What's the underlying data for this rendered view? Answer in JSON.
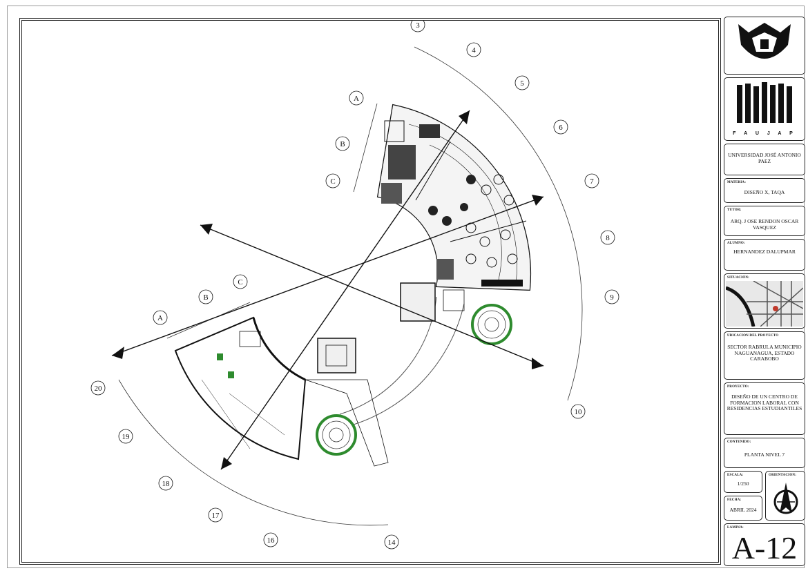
{
  "axes_radial": [
    "3",
    "4",
    "5",
    "6",
    "7",
    "8",
    "9",
    "10"
  ],
  "axes_radial_lower": [
    "20",
    "19",
    "18",
    "17",
    "16",
    "14"
  ],
  "axes_letters_top": [
    "A",
    "B",
    "C"
  ],
  "axes_letters_left": [
    "A",
    "B",
    "C"
  ],
  "title_block": {
    "school_initials": "F A U J A P",
    "university": "UNIVERSIDAD JOSÉ ANTONIO PAEZ",
    "materia_label": "MATERIA:",
    "materia_value": "DISEÑO X, TAQA",
    "tutor_label": "TUTOR:",
    "tutor_value": "ARQ. J OSE RENDON OSCAR VASQUEZ",
    "alumno_label": "ALUMNO:",
    "alumno_value": "HERNANDEZ DALUPMAR",
    "situacion_label": "SITUACIÓN:",
    "ubicacion_label": "UBICACION DEL PROYECTO",
    "ubicacion_value": "SECTOR RABRULA MUNICIPIO NAGUANAGUA, ESTADO CARABOBO",
    "proyecto_label": "PROYECTO:",
    "proyecto_value": "DISEÑO DE UN CENTRO DE FORMACION LABORAL CON RESIDENCIAS ESTUDIANTILES",
    "contenido_label": "CONTENIDO:",
    "contenido_value": "PLANTA NIVEL 7",
    "escala_label": "ESCALA:",
    "escala_value": "1/250",
    "orientacion_label": "ORIENTACION:",
    "fecha_label": "FECHA:",
    "fecha_value": "ABRIL 2024",
    "lamina_label": "LAMINA:",
    "lamina_value": "A-12"
  }
}
